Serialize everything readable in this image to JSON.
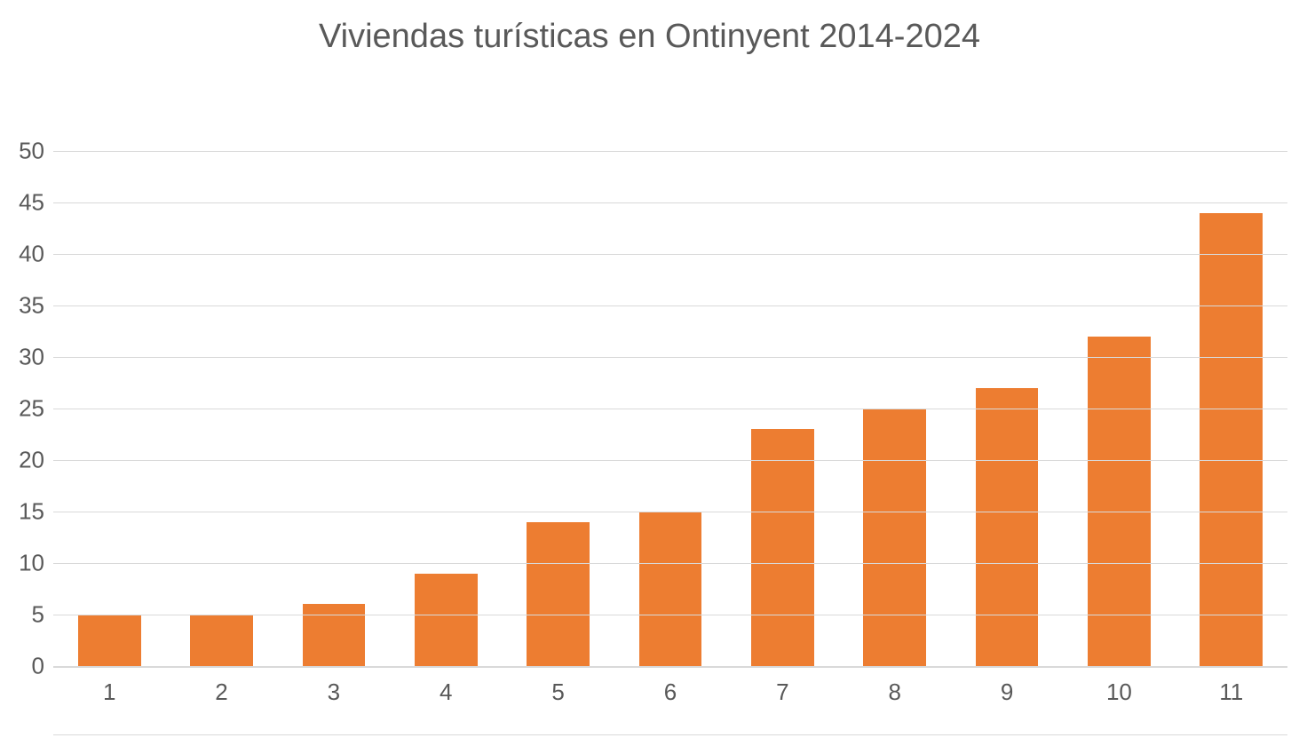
{
  "chart": {
    "type": "bar",
    "title": "Viviendas turísticas en Ontinyent 2014-2024",
    "title_fontsize": 38,
    "title_color": "#595959",
    "categories": [
      "1",
      "2",
      "3",
      "4",
      "5",
      "6",
      "7",
      "8",
      "9",
      "10",
      "11"
    ],
    "values": [
      5,
      5,
      6,
      9,
      14,
      15,
      23,
      25,
      27,
      32,
      44
    ],
    "bar_color": "#ed7d31",
    "bar_width": 0.56,
    "ylim": [
      0,
      50
    ],
    "ytick_step": 5,
    "yticks": [
      "0",
      "5",
      "10",
      "15",
      "20",
      "25",
      "30",
      "35",
      "40",
      "45",
      "50"
    ],
    "grid_color": "#d9d9d9",
    "grid_width": 1,
    "baseline_color": "#d9d9d9",
    "baseline_width": 2,
    "axis_label_color": "#595959",
    "axis_label_fontsize": 26,
    "background_color": "#ffffff"
  }
}
